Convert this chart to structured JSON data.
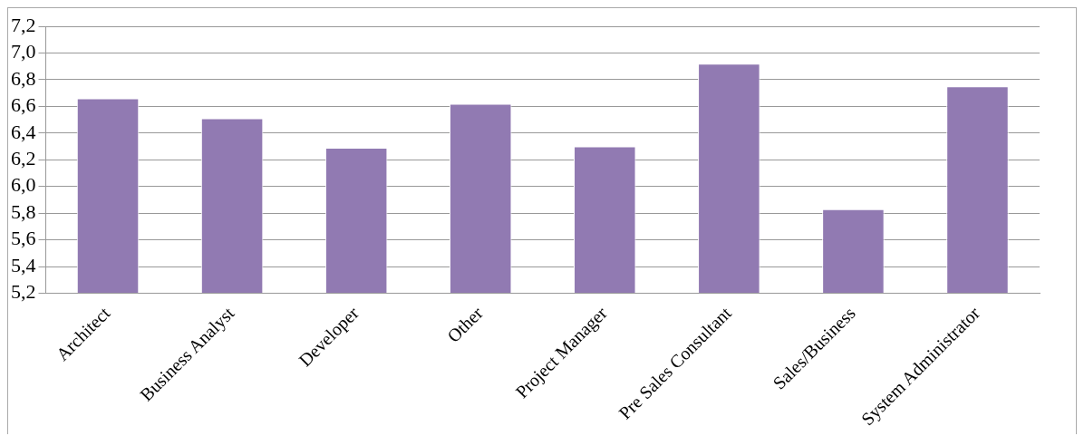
{
  "chart_data": {
    "type": "bar",
    "categories": [
      "Architect",
      "Business Analyst",
      "Developer",
      "Other",
      "Project Manager",
      "Pre Sales Consultant",
      "Sales/Business",
      "System Administrator"
    ],
    "values": [
      6.66,
      6.51,
      6.29,
      6.62,
      6.3,
      6.92,
      5.83,
      6.75
    ],
    "color": "#917ab2",
    "ylim": [
      5.2,
      7.2
    ],
    "yticks": [
      {
        "value": 5.2,
        "label": "5,2"
      },
      {
        "value": 5.4,
        "label": "5,4"
      },
      {
        "value": 5.6,
        "label": "5,6"
      },
      {
        "value": 5.8,
        "label": "5,8"
      },
      {
        "value": 6.0,
        "label": "6,0"
      },
      {
        "value": 6.2,
        "label": "6,2"
      },
      {
        "value": 6.4,
        "label": "6,4"
      },
      {
        "value": 6.6,
        "label": "6,6"
      },
      {
        "value": 6.8,
        "label": "6,8"
      },
      {
        "value": 7.0,
        "label": "7,0"
      },
      {
        "value": 7.2,
        "label": "7,2"
      }
    ],
    "grid": true
  }
}
